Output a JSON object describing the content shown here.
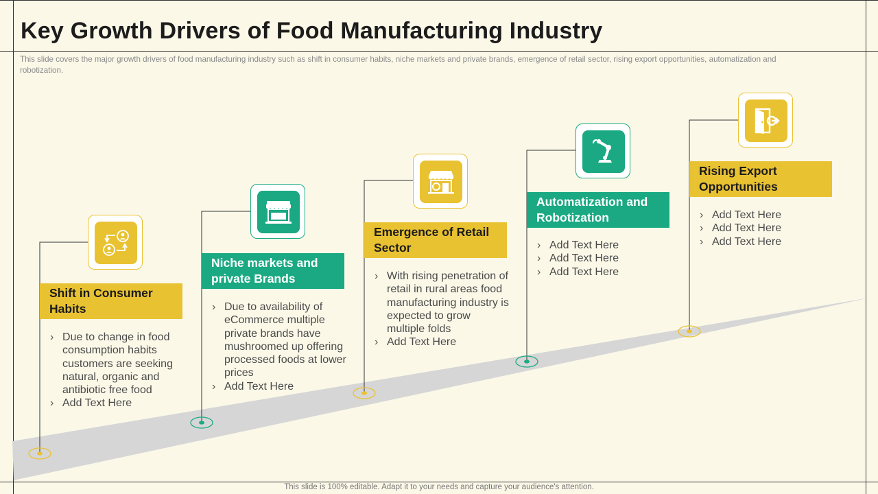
{
  "title": "Key Growth Drivers of Food Manufacturing Industry",
  "subtitle": "This slide covers the major growth drivers of food manufacturing industry such as shift in consumer habits, niche markets and private brands, emergence of retail sector, rising export opportunities, automatization and robotization.",
  "footer": "This slide is 100% editable. Adapt it to your needs and capture your audience's attention.",
  "colors": {
    "yellow": "#e9c232",
    "green": "#1aa982",
    "background": "#fbf8e8",
    "road": "#d6d6d6"
  },
  "drivers": [
    {
      "title": "Shift in Consumer Habits",
      "icon": "consumer-exchange-icon",
      "color": "yellow",
      "bullets": [
        "Due to change in food consumption habits customers are seeking natural, organic and antibiotic free food",
        "Add Text Here"
      ]
    },
    {
      "title": "Niche markets and private Brands",
      "icon": "storefront-icon",
      "color": "green",
      "bullets": [
        "Due to availability of eCommerce multiple private brands have mushroomed up offering processed foods at lower prices",
        "Add Text Here"
      ]
    },
    {
      "title": "Emergence of Retail Sector",
      "icon": "retail-store-icon",
      "color": "yellow",
      "bullets": [
        "With rising penetration of retail in rural areas food manufacturing industry is expected to grow multiple folds",
        "Add Text Here"
      ]
    },
    {
      "title": "Automatization and Robotization",
      "icon": "robotic-arm-icon",
      "color": "green",
      "bullets": [
        "Add Text Here",
        "Add Text Here",
        "Add Text Here"
      ]
    },
    {
      "title": "Rising Export Opportunities",
      "icon": "export-door-icon",
      "color": "yellow",
      "bullets": [
        "Add Text Here",
        "Add Text Here",
        "Add Text Here"
      ]
    }
  ]
}
